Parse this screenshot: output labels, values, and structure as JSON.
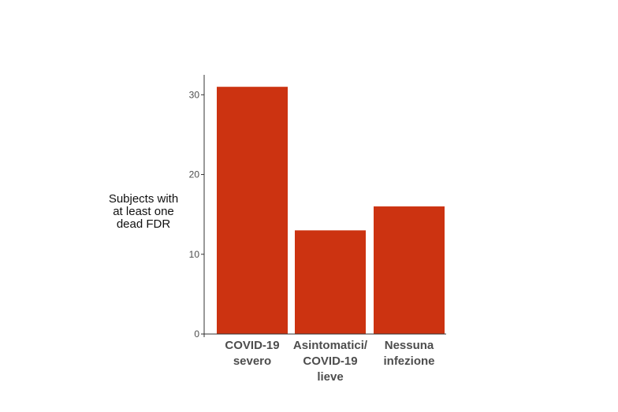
{
  "chart_data": {
    "type": "bar",
    "title": "",
    "xlabel": "",
    "ylabel_lines": [
      "Subjects with",
      "at least one",
      "dead FDR"
    ],
    "categories": [
      [
        "COVID-19",
        "severo"
      ],
      [
        "Asintomatici/",
        "COVID-19",
        "lieve"
      ],
      [
        "Nessuna",
        "infezione"
      ]
    ],
    "values": [
      31,
      13,
      16
    ],
    "ylim": [
      0,
      32.5
    ],
    "yticks": [
      0,
      10,
      20,
      30
    ],
    "grid": false,
    "legend": "none",
    "bar_color": "#cc3311"
  }
}
